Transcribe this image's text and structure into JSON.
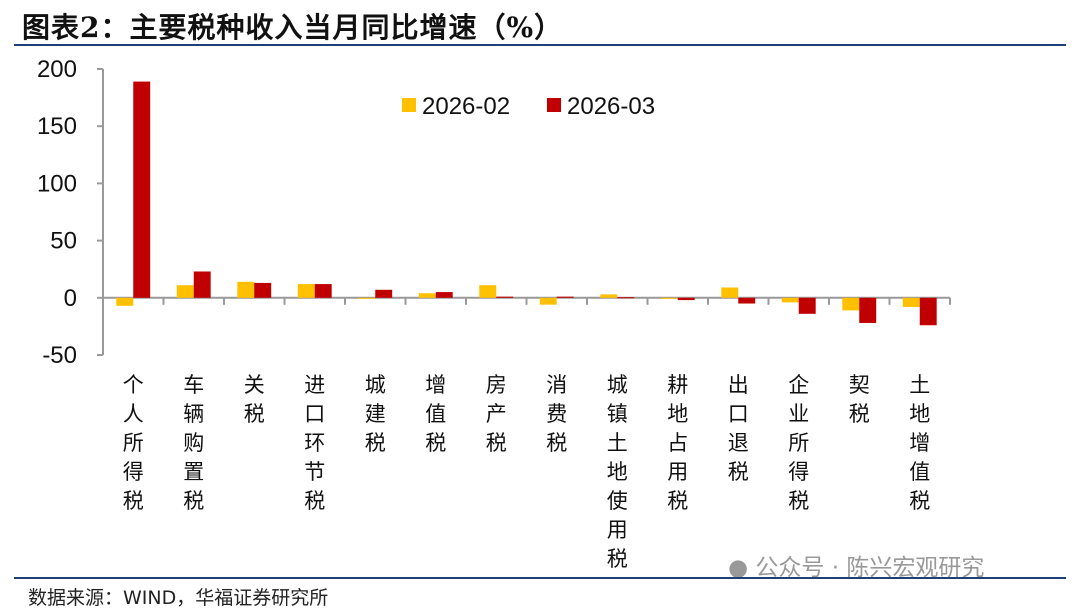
{
  "title": "图表2：主要税种收入当月同比增速（%）",
  "source": "数据来源：WIND，华福证券研究所",
  "watermark": "公众号 · 陈兴宏观研究",
  "chart_data": {
    "type": "bar",
    "title": "图表2：主要税种收入当月同比增速（%）",
    "categories": [
      "个人所得税",
      "车辆购置税",
      "关税",
      "进口环节税",
      "城建税",
      "增值税",
      "房产税",
      "消费税",
      "城镇土地使用税",
      "耕地占用税",
      "出口退税",
      "企业所得税",
      "契税",
      "土地增值税"
    ],
    "series": [
      {
        "name": "2026-02",
        "color": "#FFC000",
        "values": [
          -7,
          11,
          14,
          12,
          0,
          4,
          11,
          -6,
          3,
          0,
          9,
          -4,
          -11,
          -8
        ]
      },
      {
        "name": "2026-03",
        "color": "#C00000",
        "values": [
          189,
          23,
          13,
          12,
          7,
          5,
          1,
          1,
          0.5,
          -2,
          -5,
          -14,
          -22,
          -24
        ]
      }
    ],
    "ylim": [
      -50,
      200
    ],
    "yticks": [
      -50,
      0,
      50,
      100,
      150,
      200
    ],
    "grid": false,
    "legend": "top-center"
  }
}
